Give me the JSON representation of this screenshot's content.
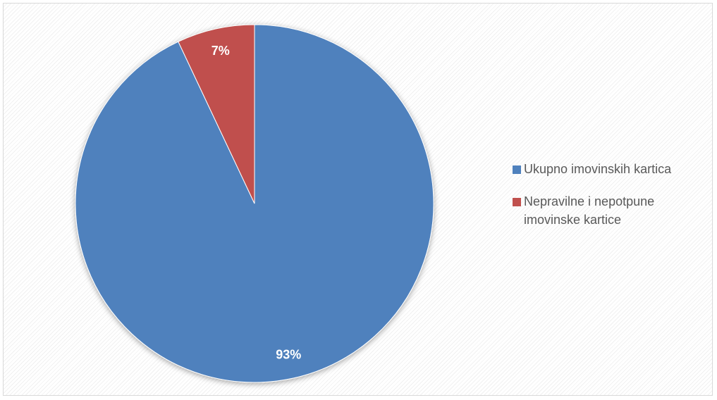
{
  "chart_data": {
    "type": "pie",
    "title": "",
    "slices": [
      {
        "name": "Ukupno imovinskih kartica",
        "value": 93,
        "label": "93%",
        "color": "#4f81bd"
      },
      {
        "name": "Nepravilne i nepotpune imovinske kartice",
        "value": 7,
        "label": "7%",
        "color": "#c0504d"
      }
    ],
    "legend_position": "right",
    "data_label_color": "#ffffff"
  }
}
